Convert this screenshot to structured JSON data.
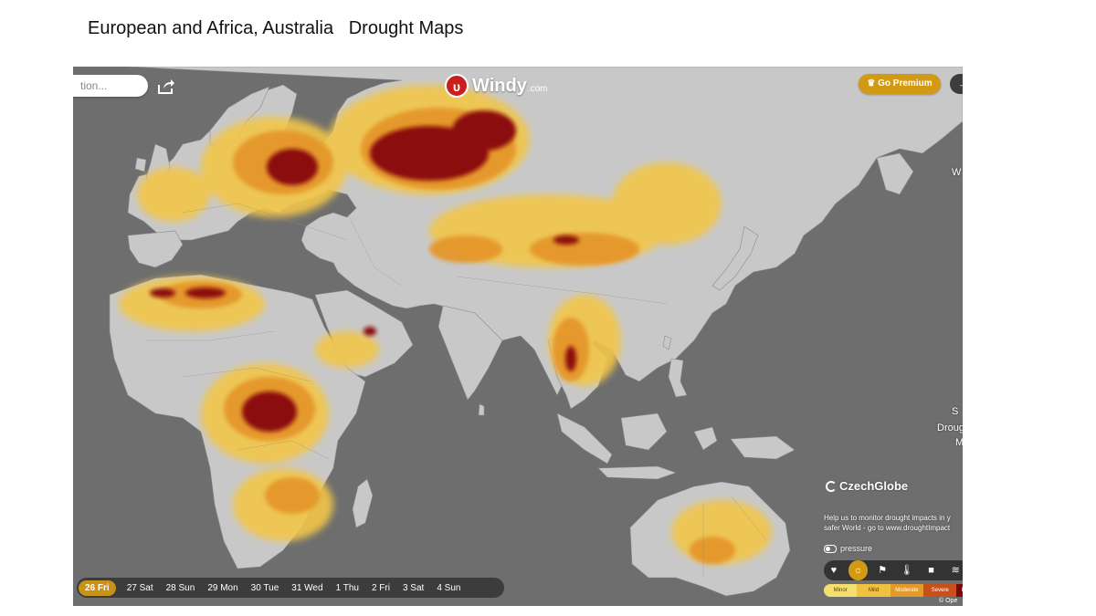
{
  "slide": {
    "title": "European and Africa, Australia   Drought Maps"
  },
  "map": {
    "search_placeholder": "tion...",
    "brand": {
      "name": "Windy",
      "suffix": ".com"
    },
    "premium_label": "Go Premium",
    "premium_icon": "crown-icon",
    "corner_button_icon": "arrow-icon",
    "edge_texts": [
      "W",
      "S",
      "Drough",
      "M"
    ],
    "partner": {
      "name": "CzechGlobe",
      "help_line1": "Help us to monitor drought impacts in y",
      "help_line2": "safer World - go to www.droughtImpact"
    },
    "pressure_label": "pressure",
    "overlay_icons": [
      "heart-icon",
      "drought-icon",
      "flag-icon",
      "thermometer-icon",
      "camera-icon",
      "wind-icon"
    ],
    "legend": {
      "labels": [
        "Minor",
        "Mild",
        "Moderate",
        "Severe",
        "E"
      ],
      "colors": [
        "#f3e070",
        "#f0c040",
        "#e39a2a",
        "#c8501a",
        "#7a0a0a"
      ]
    },
    "copyright": "© Ope",
    "timeline": {
      "days": [
        "26 Fri",
        "27 Sat",
        "28 Sun",
        "29 Mon",
        "30 Tue",
        "31 Wed",
        "1 Thu",
        "2 Fri",
        "3 Sat",
        "4 Sun"
      ],
      "selected_index": 0
    },
    "colors": {
      "ocean": "#6e6e6e",
      "land": "#c8c8c8",
      "accent": "#d19a12"
    }
  }
}
